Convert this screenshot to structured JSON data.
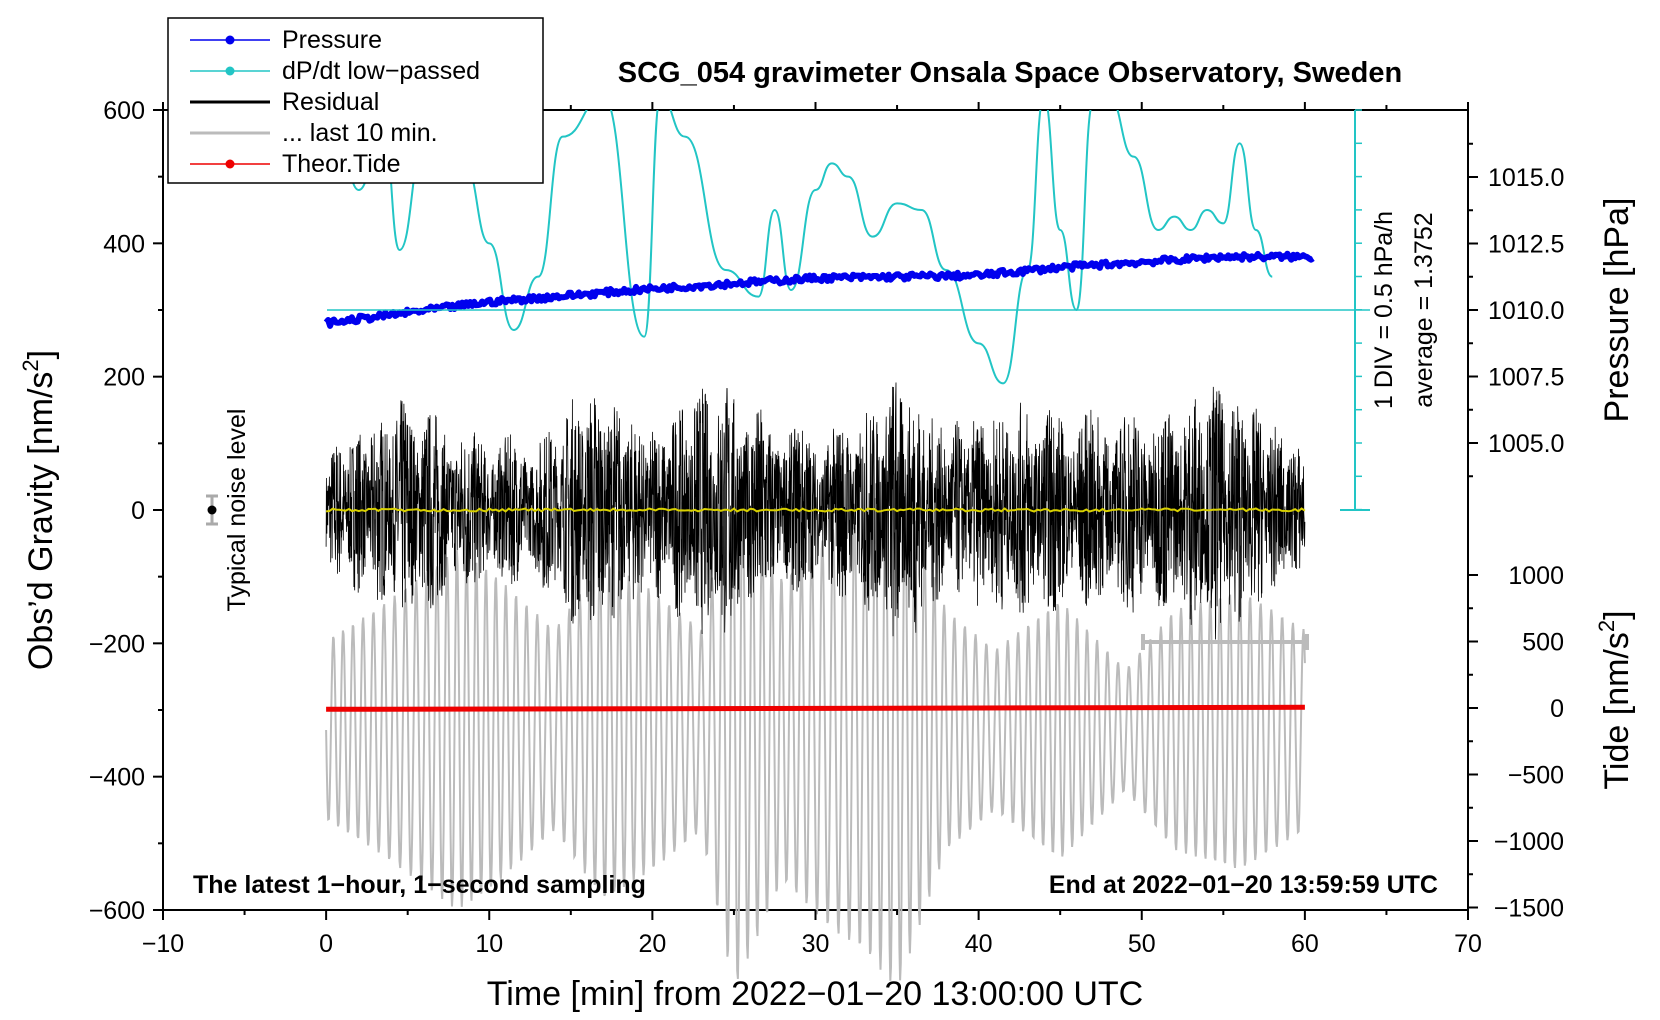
{
  "chart_data": {
    "type": "line",
    "title": "SCG_054 gravimeter Onsala Space Observatory, Sweden",
    "xlabel": "Time [min] from 2022−01−20 13:00:00 UTC",
    "ylabel_left": "Obs’d Gravity [nm/s",
    "ylabel_left_sup": "2",
    "ylabel_left_end": "]",
    "ylabel_right_pressure": "Pressure [hPa]",
    "ylabel_right_tide": "Tide [nm/s",
    "ylabel_right_tide_sup": "2",
    "ylabel_right_tide_end": "]",
    "xlim": [
      -10,
      70
    ],
    "ylim_left": [
      -600,
      600
    ],
    "x_ticks": [
      "−10",
      "0",
      "10",
      "20",
      "30",
      "40",
      "50",
      "60",
      "70"
    ],
    "y_ticks_left": [
      "600",
      "400",
      "200",
      "0",
      "−200",
      "−400",
      "−600"
    ],
    "pressure_ticks": [
      "1015.0",
      "1012.5",
      "1010.0",
      "1007.5",
      "1005.0"
    ],
    "tide_ticks": [
      "1000",
      "500",
      "0",
      "−500",
      "−1000",
      "−1500"
    ],
    "legend": [
      {
        "label": "Pressure",
        "color": "#0000ee",
        "marker": true
      },
      {
        "label": "dP/dt low−passed",
        "color": "#22c5c5",
        "marker": true
      },
      {
        "label": "Residual",
        "color": "#000000",
        "marker": false
      },
      {
        "label": "... last 10 min.",
        "color": "#bbbbbb",
        "marker": false
      },
      {
        "label": "Theor.Tide",
        "color": "#ee0000",
        "marker": true
      }
    ],
    "annotations": {
      "bottom_left": "The latest 1−hour, 1−second sampling",
      "bottom_right": "End at 2022−01−20 13:59:59 UTC",
      "noise": "Typical noise level",
      "div_scale": "1 DIV = 0.5 hPa/h",
      "average": "average = 1.3752"
    },
    "series": [
      {
        "name": "Pressure",
        "unit": "hPa",
        "x": [
          0,
          10,
          20,
          30,
          40,
          45,
          50,
          55,
          60
        ],
        "values": [
          1009.5,
          1010.3,
          1010.8,
          1011.2,
          1011.3,
          1011.6,
          1011.8,
          1012.0,
          1012.0
        ]
      },
      {
        "name": "dP/dt low-passed",
        "x": [
          0.5,
          2,
          3.5,
          4.5,
          6,
          7,
          8.5,
          10,
          11.5,
          13,
          14.5,
          17,
          19.5,
          20.5,
          22,
          24.5,
          26.5,
          27.5,
          28.5,
          30,
          31,
          32,
          33.5,
          35,
          36.5,
          38,
          40,
          41.5,
          43,
          44,
          45,
          46,
          47,
          48,
          49.5,
          51,
          52,
          53,
          54,
          55,
          56,
          57,
          58
        ],
        "values": [
          600,
          480,
          580,
          390,
          550,
          610,
          520,
          400,
          270,
          350,
          560,
          620,
          260,
          620,
          560,
          360,
          320,
          450,
          330,
          480,
          520,
          500,
          410,
          460,
          450,
          360,
          250,
          190,
          360,
          620,
          420,
          300,
          610,
          620,
          530,
          420,
          440,
          420,
          450,
          430,
          550,
          420,
          350
        ]
      },
      {
        "name": "Theor.Tide",
        "unit": "nm/s2",
        "x": [
          0,
          20,
          40,
          60
        ],
        "values": [
          -10,
          -5,
          0,
          5
        ]
      }
    ],
    "residual_envelope": {
      "x": [
        0,
        3,
        5,
        9,
        13,
        16,
        20,
        24,
        27,
        30,
        33.5,
        35,
        38,
        43,
        46,
        52,
        54.5,
        56,
        60
      ],
      "amplitude": [
        100,
        140,
        180,
        120,
        110,
        200,
        130,
        210,
        150,
        120,
        160,
        220,
        130,
        170,
        150,
        160,
        200,
        180,
        90
      ]
    },
    "tide_trace_envelope": {
      "x": [
        0,
        3,
        8,
        10,
        14,
        17,
        20,
        23,
        25,
        28,
        31,
        33,
        35,
        38,
        41,
        45,
        49,
        52,
        56,
        60
      ],
      "amplitude": [
        90,
        120,
        180,
        160,
        100,
        170,
        140,
        100,
        260,
        150,
        200,
        220,
        260,
        120,
        80,
        130,
        60,
        120,
        140,
        100
      ]
    }
  }
}
